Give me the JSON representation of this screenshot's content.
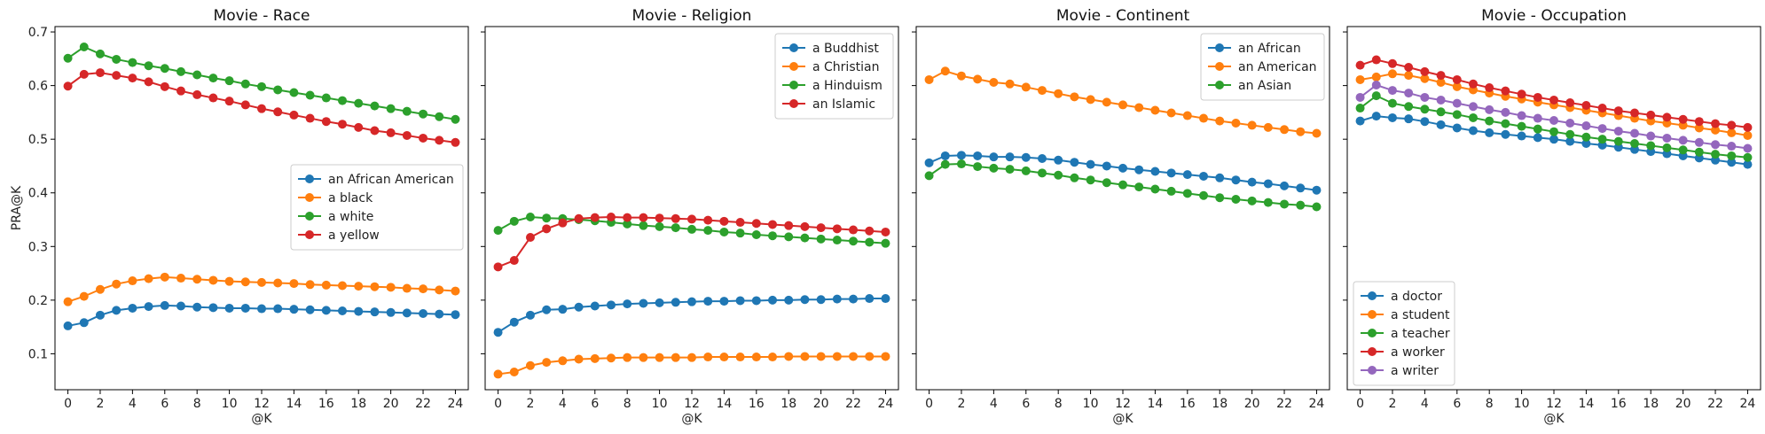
{
  "figure": {
    "ylabel": "PRA@K",
    "xlabel": "@K"
  },
  "chart_data": [
    {
      "type": "line",
      "title": "Movie - Race",
      "xlabel": "@K",
      "ylabel": "PRA@K",
      "x": [
        0,
        1,
        2,
        3,
        4,
        5,
        6,
        7,
        8,
        9,
        10,
        11,
        12,
        13,
        14,
        15,
        16,
        17,
        18,
        19,
        20,
        21,
        22,
        23,
        24
      ],
      "xticks": [
        0,
        2,
        4,
        6,
        8,
        10,
        12,
        14,
        16,
        18,
        20,
        22,
        24
      ],
      "yticks": [
        0.1,
        0.2,
        0.3,
        0.4,
        0.5,
        0.6,
        0.7
      ],
      "ylim": [
        0.033,
        0.71
      ],
      "legend": "center-right",
      "series": [
        {
          "name": "an African American",
          "color": "#1f77b4",
          "values": [
            0.152,
            0.158,
            0.172,
            0.181,
            0.185,
            0.188,
            0.19,
            0.189,
            0.187,
            0.186,
            0.185,
            0.185,
            0.184,
            0.184,
            0.183,
            0.182,
            0.181,
            0.18,
            0.179,
            0.178,
            0.177,
            0.176,
            0.175,
            0.174,
            0.173
          ]
        },
        {
          "name": "a black",
          "color": "#ff7f0e",
          "values": [
            0.197,
            0.207,
            0.22,
            0.23,
            0.236,
            0.24,
            0.243,
            0.241,
            0.239,
            0.237,
            0.235,
            0.234,
            0.233,
            0.232,
            0.231,
            0.229,
            0.228,
            0.227,
            0.226,
            0.225,
            0.224,
            0.222,
            0.221,
            0.219,
            0.217
          ]
        },
        {
          "name": "a white",
          "color": "#2ca02c",
          "values": [
            0.651,
            0.672,
            0.659,
            0.649,
            0.643,
            0.637,
            0.632,
            0.626,
            0.62,
            0.614,
            0.609,
            0.603,
            0.598,
            0.592,
            0.587,
            0.582,
            0.577,
            0.572,
            0.567,
            0.562,
            0.557,
            0.552,
            0.547,
            0.542,
            0.537
          ]
        },
        {
          "name": "a yellow",
          "color": "#d62728",
          "values": [
            0.599,
            0.621,
            0.624,
            0.619,
            0.614,
            0.607,
            0.598,
            0.59,
            0.583,
            0.577,
            0.571,
            0.564,
            0.557,
            0.551,
            0.545,
            0.539,
            0.533,
            0.528,
            0.522,
            0.516,
            0.512,
            0.507,
            0.502,
            0.498,
            0.494
          ]
        }
      ]
    },
    {
      "type": "line",
      "title": "Movie - Religion",
      "xlabel": "@K",
      "ylabel": "",
      "x": [
        0,
        1,
        2,
        3,
        4,
        5,
        6,
        7,
        8,
        9,
        10,
        11,
        12,
        13,
        14,
        15,
        16,
        17,
        18,
        19,
        20,
        21,
        22,
        23,
        24
      ],
      "xticks": [
        0,
        2,
        4,
        6,
        8,
        10,
        12,
        14,
        16,
        18,
        20,
        22,
        24
      ],
      "yticks": [
        0.1,
        0.2,
        0.3,
        0.4,
        0.5,
        0.6,
        0.7
      ],
      "ylim": [
        0.033,
        0.71
      ],
      "legend": "upper-right",
      "series": [
        {
          "name": "a Buddhist",
          "color": "#1f77b4",
          "values": [
            0.14,
            0.159,
            0.172,
            0.182,
            0.183,
            0.187,
            0.189,
            0.191,
            0.193,
            0.194,
            0.195,
            0.196,
            0.197,
            0.198,
            0.198,
            0.199,
            0.199,
            0.2,
            0.2,
            0.201,
            0.201,
            0.202,
            0.202,
            0.203,
            0.203
          ]
        },
        {
          "name": "a Christian",
          "color": "#ff7f0e",
          "values": [
            0.062,
            0.066,
            0.078,
            0.084,
            0.087,
            0.09,
            0.091,
            0.092,
            0.093,
            0.093,
            0.093,
            0.093,
            0.093,
            0.094,
            0.094,
            0.094,
            0.094,
            0.094,
            0.095,
            0.095,
            0.095,
            0.095,
            0.095,
            0.095,
            0.095
          ]
        },
        {
          "name": "a Hinduism",
          "color": "#2ca02c",
          "values": [
            0.33,
            0.347,
            0.355,
            0.353,
            0.352,
            0.35,
            0.348,
            0.345,
            0.342,
            0.339,
            0.337,
            0.335,
            0.332,
            0.33,
            0.327,
            0.325,
            0.322,
            0.32,
            0.318,
            0.316,
            0.314,
            0.312,
            0.31,
            0.308,
            0.306
          ]
        },
        {
          "name": "an Islamic",
          "color": "#d62728",
          "values": [
            0.262,
            0.274,
            0.317,
            0.333,
            0.344,
            0.352,
            0.354,
            0.355,
            0.354,
            0.354,
            0.353,
            0.352,
            0.351,
            0.349,
            0.347,
            0.345,
            0.343,
            0.341,
            0.339,
            0.337,
            0.335,
            0.333,
            0.331,
            0.329,
            0.327
          ]
        }
      ]
    },
    {
      "type": "line",
      "title": "Movie - Continent",
      "xlabel": "@K",
      "ylabel": "",
      "x": [
        0,
        1,
        2,
        3,
        4,
        5,
        6,
        7,
        8,
        9,
        10,
        11,
        12,
        13,
        14,
        15,
        16,
        17,
        18,
        19,
        20,
        21,
        22,
        23,
        24
      ],
      "xticks": [
        0,
        2,
        4,
        6,
        8,
        10,
        12,
        14,
        16,
        18,
        20,
        22,
        24
      ],
      "yticks": [
        0.1,
        0.2,
        0.3,
        0.4,
        0.5,
        0.6,
        0.7
      ],
      "ylim": [
        0.033,
        0.71
      ],
      "legend": "upper-right",
      "series": [
        {
          "name": "an African",
          "color": "#1f77b4",
          "values": [
            0.456,
            0.469,
            0.47,
            0.469,
            0.467,
            0.467,
            0.466,
            0.464,
            0.461,
            0.457,
            0.453,
            0.45,
            0.446,
            0.443,
            0.44,
            0.437,
            0.434,
            0.431,
            0.428,
            0.424,
            0.42,
            0.417,
            0.413,
            0.409,
            0.405
          ]
        },
        {
          "name": "an American",
          "color": "#ff7f0e",
          "values": [
            0.611,
            0.627,
            0.618,
            0.612,
            0.606,
            0.603,
            0.597,
            0.591,
            0.585,
            0.579,
            0.574,
            0.569,
            0.564,
            0.559,
            0.554,
            0.549,
            0.544,
            0.539,
            0.534,
            0.53,
            0.526,
            0.522,
            0.518,
            0.514,
            0.511
          ]
        },
        {
          "name": "an Asian",
          "color": "#2ca02c",
          "values": [
            0.432,
            0.453,
            0.454,
            0.449,
            0.446,
            0.444,
            0.441,
            0.437,
            0.433,
            0.428,
            0.424,
            0.419,
            0.415,
            0.411,
            0.407,
            0.403,
            0.399,
            0.395,
            0.391,
            0.388,
            0.385,
            0.382,
            0.379,
            0.377,
            0.374
          ]
        }
      ]
    },
    {
      "type": "line",
      "title": "Movie - Occupation",
      "xlabel": "@K",
      "ylabel": "",
      "x": [
        0,
        1,
        2,
        3,
        4,
        5,
        6,
        7,
        8,
        9,
        10,
        11,
        12,
        13,
        14,
        15,
        16,
        17,
        18,
        19,
        20,
        21,
        22,
        23,
        24
      ],
      "xticks": [
        0,
        2,
        4,
        6,
        8,
        10,
        12,
        14,
        16,
        18,
        20,
        22,
        24
      ],
      "yticks": [
        0.1,
        0.2,
        0.3,
        0.4,
        0.5,
        0.6,
        0.7
      ],
      "ylim": [
        0.033,
        0.71
      ],
      "legend": "lower-left",
      "series": [
        {
          "name": "a doctor",
          "color": "#1f77b4",
          "values": [
            0.534,
            0.543,
            0.54,
            0.538,
            0.533,
            0.527,
            0.521,
            0.516,
            0.512,
            0.509,
            0.506,
            0.503,
            0.5,
            0.496,
            0.492,
            0.489,
            0.485,
            0.481,
            0.477,
            0.473,
            0.469,
            0.465,
            0.461,
            0.457,
            0.453
          ]
        },
        {
          "name": "a student",
          "color": "#ff7f0e",
          "values": [
            0.611,
            0.616,
            0.622,
            0.619,
            0.613,
            0.606,
            0.598,
            0.592,
            0.586,
            0.58,
            0.575,
            0.569,
            0.564,
            0.559,
            0.554,
            0.549,
            0.544,
            0.539,
            0.534,
            0.53,
            0.526,
            0.521,
            0.517,
            0.512,
            0.507
          ]
        },
        {
          "name": "a teacher",
          "color": "#2ca02c",
          "values": [
            0.558,
            0.581,
            0.567,
            0.561,
            0.556,
            0.551,
            0.546,
            0.54,
            0.534,
            0.529,
            0.524,
            0.519,
            0.514,
            0.509,
            0.504,
            0.5,
            0.496,
            0.492,
            0.488,
            0.484,
            0.48,
            0.476,
            0.472,
            0.469,
            0.466
          ]
        },
        {
          "name": "a worker",
          "color": "#d62728",
          "values": [
            0.638,
            0.648,
            0.641,
            0.634,
            0.626,
            0.619,
            0.611,
            0.603,
            0.596,
            0.59,
            0.584,
            0.578,
            0.573,
            0.568,
            0.563,
            0.558,
            0.553,
            0.549,
            0.545,
            0.541,
            0.537,
            0.533,
            0.529,
            0.526,
            0.522
          ]
        },
        {
          "name": "a writer",
          "color": "#9467bd",
          "values": [
            0.578,
            0.601,
            0.591,
            0.586,
            0.578,
            0.573,
            0.567,
            0.561,
            0.555,
            0.55,
            0.544,
            0.539,
            0.535,
            0.53,
            0.525,
            0.52,
            0.515,
            0.511,
            0.506,
            0.502,
            0.498,
            0.494,
            0.49,
            0.487,
            0.483
          ]
        }
      ]
    }
  ]
}
